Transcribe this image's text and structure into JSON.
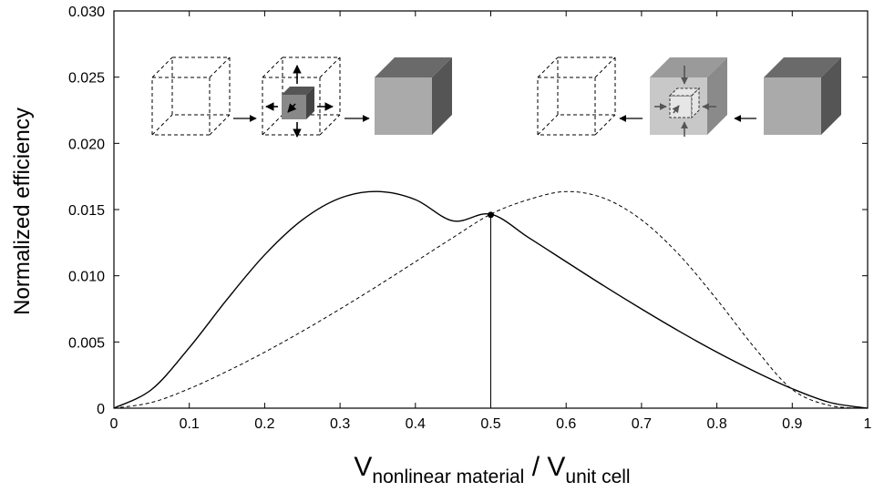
{
  "chart_data": {
    "type": "line",
    "title": "",
    "ylabel": "Normalized efficiency",
    "xlabel": {
      "v1": "V",
      "sub1": "nonlinear material",
      "slash": " / ",
      "v2": "V",
      "sub2": "unit cell"
    },
    "xlim": [
      0,
      1
    ],
    "ylim": [
      0,
      0.03
    ],
    "x_ticks": [
      0,
      0.1,
      0.2,
      0.3,
      0.4,
      0.5,
      0.6,
      0.7,
      0.8,
      0.9,
      1
    ],
    "x_tick_labels": [
      "0",
      "0.1",
      "0.2",
      "0.3",
      "0.4",
      "0.5",
      "0.6",
      "0.7",
      "0.8",
      "0.9",
      "1"
    ],
    "y_ticks": [
      0,
      0.005,
      0.01,
      0.015,
      0.02,
      0.025,
      0.03
    ],
    "y_tick_labels": [
      "0",
      "0.005",
      "0.010",
      "0.015",
      "0.020",
      "0.025",
      "0.030"
    ],
    "grid": false,
    "series": [
      {
        "style": "solid",
        "color": "#000000",
        "x": [
          0,
          0.05,
          0.1,
          0.15,
          0.2,
          0.25,
          0.3,
          0.35,
          0.4,
          0.45,
          0.5,
          0.55,
          0.6,
          0.65,
          0.7,
          0.75,
          0.8,
          0.85,
          0.9,
          0.95,
          1
        ],
        "y": [
          0,
          0.00141,
          0.00457,
          0.00821,
          0.01158,
          0.01422,
          0.01586,
          0.01636,
          0.01575,
          0.01414,
          0.01465,
          0.01289,
          0.01106,
          0.00924,
          0.00749,
          0.00581,
          0.00423,
          0.00278,
          0.00147,
          0.00043,
          0
        ]
      },
      {
        "style": "dashed",
        "color": "#000000",
        "x": [
          0,
          0.05,
          0.1,
          0.15,
          0.2,
          0.25,
          0.3,
          0.35,
          0.4,
          0.45,
          0.5,
          0.55,
          0.6,
          0.65,
          0.7,
          0.75,
          0.8,
          0.85,
          0.9,
          0.95,
          1
        ],
        "y": [
          0,
          0.00043,
          0.00147,
          0.00278,
          0.00423,
          0.00581,
          0.00749,
          0.00924,
          0.01106,
          0.01289,
          0.01465,
          0.01575,
          0.01636,
          0.01586,
          0.01422,
          0.01158,
          0.00821,
          0.00457,
          0.00141,
          0.0002,
          0
        ]
      }
    ],
    "marker": {
      "x": 0.5,
      "y": 0.0146
    },
    "vertical_line": {
      "x": 0.5
    },
    "insets": [
      {
        "side": "left",
        "steps": [
          "empty-cell",
          "growing-core",
          "filled-cell"
        ]
      },
      {
        "side": "right",
        "steps": [
          "empty-cell",
          "shrinking-core",
          "filled-cell"
        ]
      }
    ]
  }
}
